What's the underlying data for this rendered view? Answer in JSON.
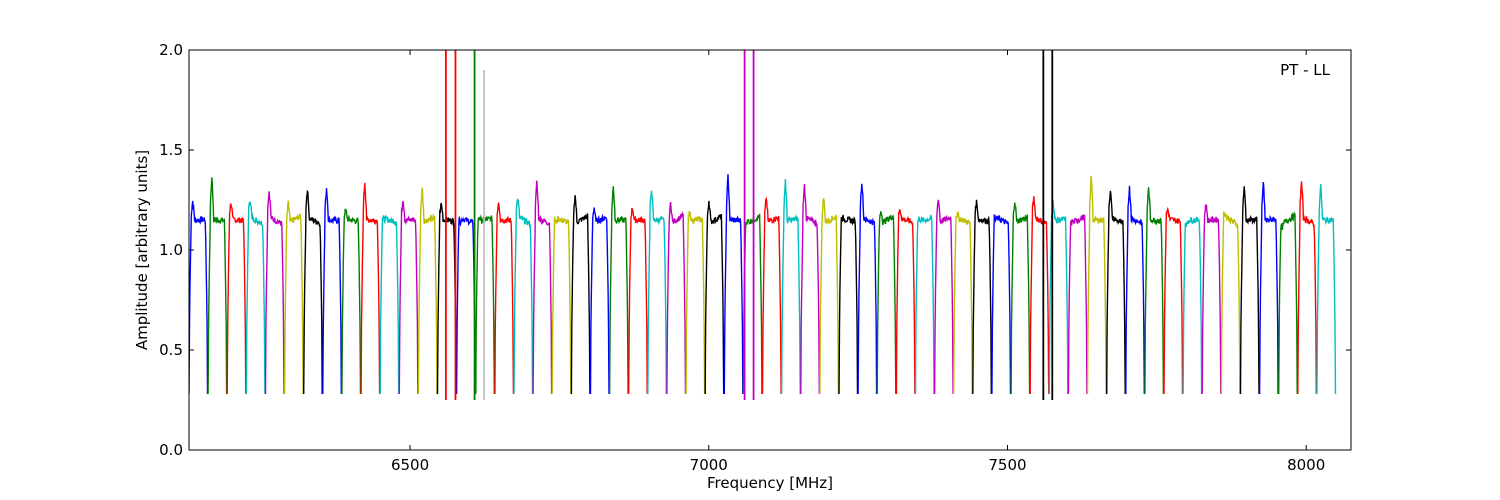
{
  "chart_data": {
    "type": "line",
    "title": "",
    "xlabel": "Frequency [MHz]",
    "ylabel": "Amplitude [arbitrary units]",
    "xlim": [
      6130,
      8075
    ],
    "ylim": [
      0.0,
      2.0
    ],
    "xticks": [
      6500,
      7000,
      7500,
      8000
    ],
    "xtick_labels": [
      "6500",
      "7000",
      "7500",
      "8000"
    ],
    "yticks": [
      0.0,
      0.5,
      1.0,
      1.5,
      2.0
    ],
    "ytick_labels": [
      "0.0",
      "0.5",
      "1.0",
      "1.5",
      "2.0"
    ],
    "annotation": "PT - LL",
    "annotation_position": "top-right",
    "grid": false,
    "colors": [
      "#0000ff",
      "#008000",
      "#ff0000",
      "#00bfbf",
      "#bf00bf",
      "#bfbf00",
      "#000000"
    ],
    "channel_width_mhz": 32,
    "first_channel_start_mhz": 6130,
    "channel_count": 60,
    "channel_shape": {
      "edge_min": 0.28,
      "plateau": 1.15,
      "peak": 1.25
    },
    "spikes": [
      {
        "x": 6560,
        "y": 2.0,
        "color": "#ff0000"
      },
      {
        "x": 6576,
        "y": 2.0,
        "color": "#ff0000"
      },
      {
        "x": 6608,
        "y": 2.0,
        "color": "#008000"
      },
      {
        "x": 6624,
        "y": 1.9,
        "color": "#bfbfbf"
      },
      {
        "x": 7060,
        "y": 2.0,
        "color": "#bf00bf"
      },
      {
        "x": 7075,
        "y": 2.0,
        "color": "#bf00bf"
      },
      {
        "x": 7560,
        "y": 2.0,
        "color": "#000000"
      },
      {
        "x": 7575,
        "y": 2.0,
        "color": "#000000"
      }
    ]
  }
}
